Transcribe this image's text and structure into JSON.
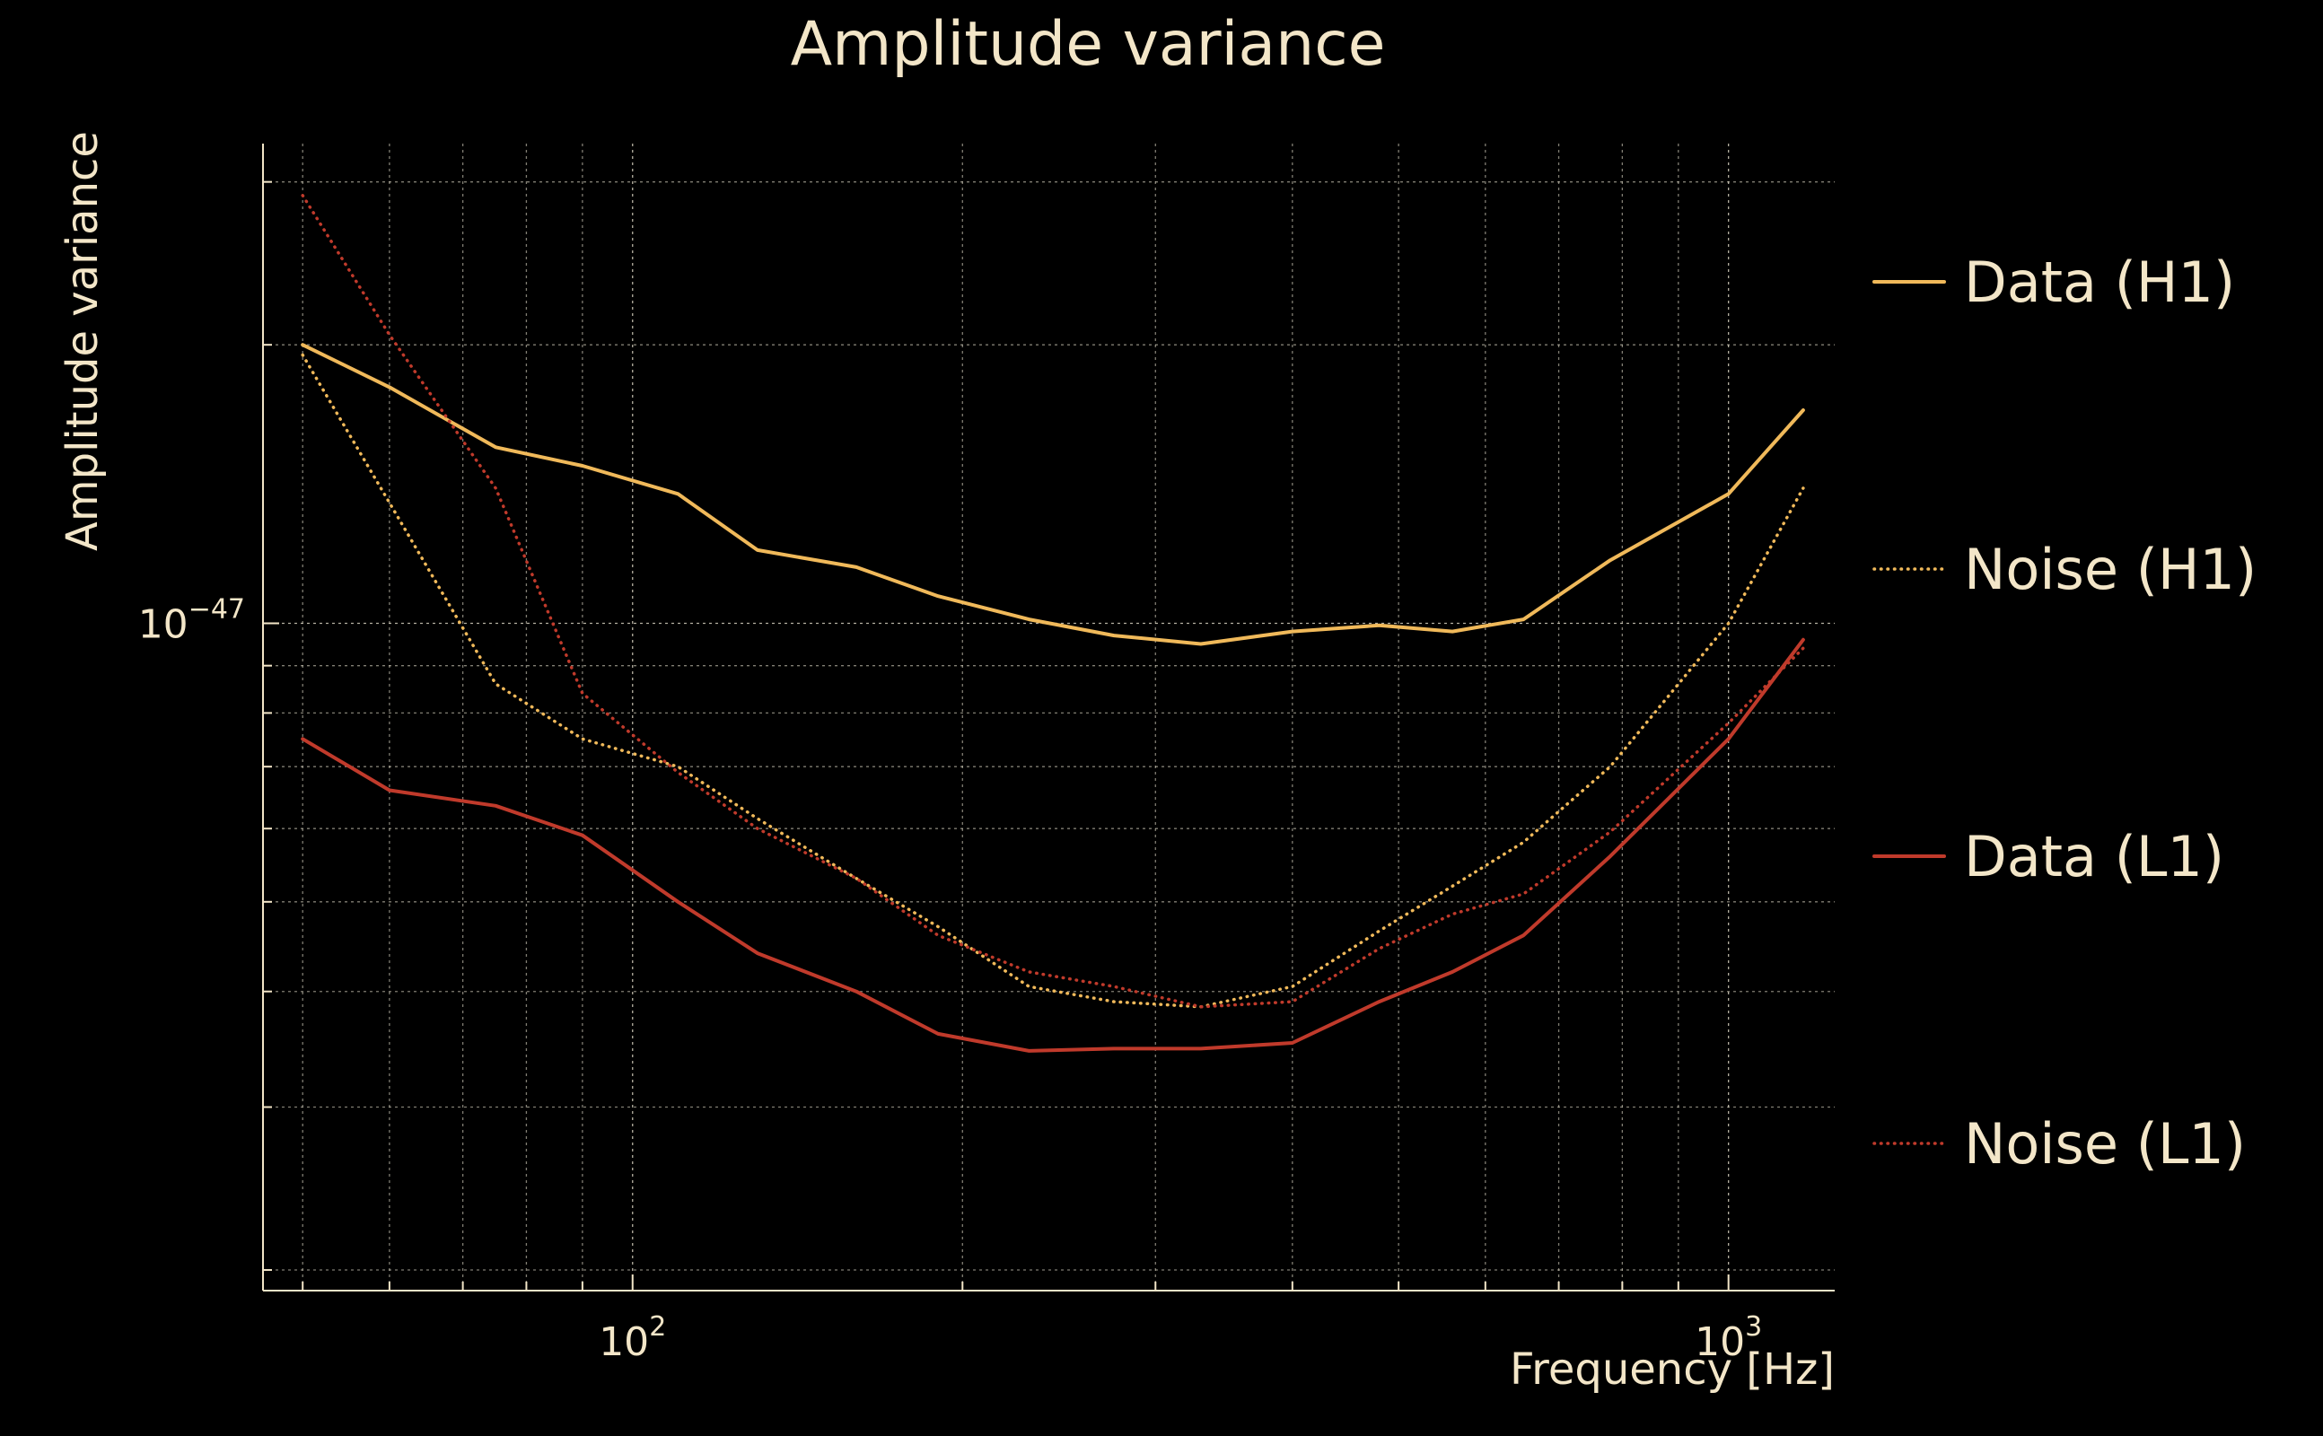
{
  "chart_data": {
    "type": "line",
    "title": "Amplitude variance",
    "xlabel": "Frequency [Hz]",
    "ylabel": "Amplitude variance",
    "xscale": "log",
    "yscale": "log",
    "xlim": [
      46,
      1250
    ],
    "ylim": [
      1.9e-48,
      3.3e-47
    ],
    "x_tick_values": [
      100,
      1000
    ],
    "x_tick_labels": [
      {
        "base": "10",
        "exp": "2"
      },
      {
        "base": "10",
        "exp": "3"
      }
    ],
    "y_tick_values": [
      1e-47
    ],
    "y_tick_labels": [
      {
        "base": "10",
        "exp": "−47"
      }
    ],
    "grid": true,
    "legend_position": "right",
    "colors": {
      "background": "#000000",
      "text": "#f3e6c8",
      "grid": "#d8d2c0",
      "h1": "#f0b95a",
      "l1": "#c03a2b"
    },
    "x": [
      50,
      60,
      75,
      90,
      110,
      130,
      160,
      190,
      230,
      275,
      330,
      400,
      480,
      560,
      650,
      780,
      1000,
      1170
    ],
    "series": [
      {
        "name": "Data (H1)",
        "color": "#f0b95a",
        "dash": "solid",
        "values": [
          2e-47,
          1.8e-47,
          1.55e-47,
          1.48e-47,
          1.38e-47,
          1.2e-47,
          1.15e-47,
          1.07e-47,
          1.01e-47,
          9.7e-48,
          9.5e-48,
          9.8e-48,
          9.95e-48,
          9.8e-48,
          1.01e-47,
          1.17e-47,
          1.38e-47,
          1.7e-47
        ]
      },
      {
        "name": "Noise (H1)",
        "color": "#f0b95a",
        "dash": "dotted",
        "values": [
          1.95e-47,
          1.35e-47,
          8.6e-48,
          7.5e-48,
          7e-48,
          6.15e-48,
          5.3e-48,
          4.7e-48,
          4.05e-48,
          3.9e-48,
          3.85e-48,
          4.05e-48,
          4.65e-48,
          5.2e-48,
          5.8e-48,
          7e-48,
          1e-47,
          1.4e-47
        ]
      },
      {
        "name": "Data (L1)",
        "color": "#c03a2b",
        "dash": "solid",
        "values": [
          7.5e-48,
          6.6e-48,
          6.35e-48,
          5.9e-48,
          5e-48,
          4.4e-48,
          4e-48,
          3.6e-48,
          3.45e-48,
          3.47e-48,
          3.47e-48,
          3.52e-48,
          3.9e-48,
          4.2e-48,
          4.6e-48,
          5.6e-48,
          7.5e-48,
          9.6e-48
        ]
      },
      {
        "name": "Noise (L1)",
        "color": "#c03a2b",
        "dash": "dotted",
        "values": [
          2.9e-47,
          2.05e-47,
          1.4e-47,
          8.4e-48,
          6.9e-48,
          6e-48,
          5.3e-48,
          4.6e-48,
          4.2e-48,
          4.05e-48,
          3.85e-48,
          3.9e-48,
          4.45e-48,
          4.85e-48,
          5.1e-48,
          5.95e-48,
          7.8e-48,
          9.4e-48
        ]
      }
    ]
  }
}
